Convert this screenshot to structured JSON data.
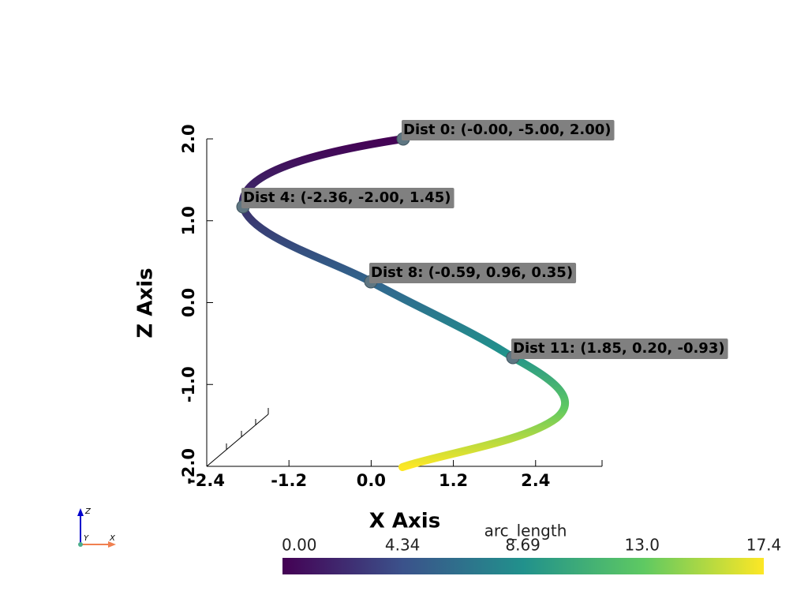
{
  "chart_data": {
    "type": "line3d",
    "xlabel": "X Axis",
    "ylabel": "Z Axis",
    "xlim": [
      -2.4,
      3.37
    ],
    "ylim": [
      -2,
      2
    ],
    "xticks": [
      -2.4,
      -1.2,
      {
        "value": 0,
        "label": "0.0"
      },
      1.2,
      2.4
    ],
    "yticks": [
      {
        "value": -2,
        "label": "-2.0"
      },
      {
        "value": -1,
        "label": "-1.0"
      },
      {
        "value": 0,
        "label": "0.0"
      },
      {
        "value": 1,
        "label": "1.0"
      },
      {
        "value": 2,
        "label": "2.0"
      }
    ],
    "annotations": [
      "Dist 0: (-0.00, -5.00, 2.00)",
      "Dist 4: (-2.36, -2.00, 1.45)",
      "Dist 8: (-0.59, 0.96, 0.35)",
      "Dist 11: (1.85, 0.20, -0.93)"
    ],
    "colorbar": {
      "title": "arc_length",
      "lim": [
        0,
        17.4
      ],
      "ticks": [
        {
          "value": 0,
          "label": "0.00"
        },
        4.34,
        8.69,
        {
          "value": 13,
          "label": "13.0"
        },
        17.4
      ],
      "colors": [
        "#440154",
        "#3b528b",
        "#21918c",
        "#5ec962",
        "#fde725"
      ]
    },
    "orientation_labels": [
      "Z",
      "Y",
      "X"
    ]
  }
}
